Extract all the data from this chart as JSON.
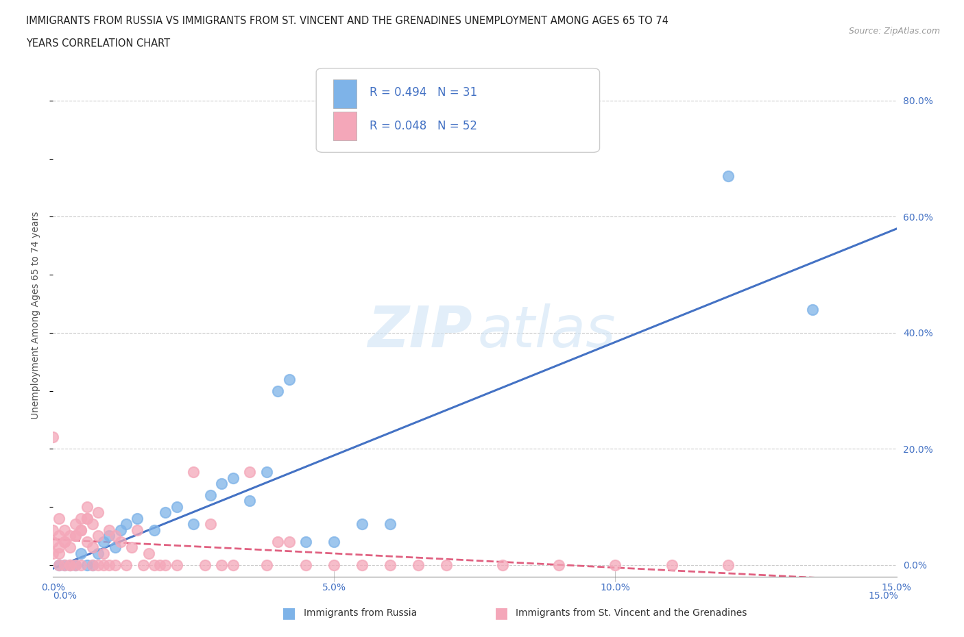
{
  "title_line1": "IMMIGRANTS FROM RUSSIA VS IMMIGRANTS FROM ST. VINCENT AND THE GRENADINES UNEMPLOYMENT AMONG AGES 65 TO 74",
  "title_line2": "YEARS CORRELATION CHART",
  "source_text": "Source: ZipAtlas.com",
  "ylabel": "Unemployment Among Ages 65 to 74 years",
  "xlim": [
    0.0,
    0.15
  ],
  "ylim": [
    -0.02,
    0.88
  ],
  "xticks": [
    0.0,
    0.05,
    0.1,
    0.15
  ],
  "xtick_labels": [
    "0.0%",
    "5.0%",
    "10.0%",
    "15.0%"
  ],
  "ytick_labels_right": [
    "0.0%",
    "20.0%",
    "40.0%",
    "60.0%",
    "80.0%"
  ],
  "ytick_values_right": [
    0.0,
    0.2,
    0.4,
    0.6,
    0.8
  ],
  "R_russia": 0.494,
  "N_russia": 31,
  "R_svg": 0.048,
  "N_svg": 52,
  "color_russia": "#7EB3E8",
  "color_svg": "#F4A7B9",
  "color_trendline_russia": "#4472C4",
  "color_trendline_svg": "#E06080",
  "russia_x": [
    0.001,
    0.002,
    0.003,
    0.004,
    0.005,
    0.006,
    0.007,
    0.008,
    0.009,
    0.01,
    0.011,
    0.012,
    0.013,
    0.015,
    0.018,
    0.02,
    0.022,
    0.025,
    0.028,
    0.03,
    0.032,
    0.035,
    0.038,
    0.04,
    0.042,
    0.045,
    0.05,
    0.055,
    0.06,
    0.12,
    0.135
  ],
  "russia_y": [
    0.0,
    0.0,
    0.0,
    0.0,
    0.02,
    0.0,
    0.0,
    0.02,
    0.04,
    0.05,
    0.03,
    0.06,
    0.07,
    0.08,
    0.06,
    0.09,
    0.1,
    0.07,
    0.12,
    0.14,
    0.15,
    0.11,
    0.16,
    0.3,
    0.32,
    0.04,
    0.04,
    0.07,
    0.07,
    0.67,
    0.44
  ],
  "svg_x": [
    0.001,
    0.001,
    0.002,
    0.002,
    0.003,
    0.003,
    0.004,
    0.004,
    0.005,
    0.005,
    0.006,
    0.006,
    0.007,
    0.007,
    0.008,
    0.008,
    0.009,
    0.009,
    0.01,
    0.01,
    0.011,
    0.011,
    0.012,
    0.013,
    0.014,
    0.015,
    0.016,
    0.017,
    0.018,
    0.019,
    0.02,
    0.022,
    0.025,
    0.027,
    0.028,
    0.03,
    0.032,
    0.035,
    0.038,
    0.04,
    0.042,
    0.045,
    0.05,
    0.055,
    0.06,
    0.065,
    0.07,
    0.08,
    0.09,
    0.1,
    0.11,
    0.12
  ],
  "svg_y": [
    0.0,
    0.02,
    0.0,
    0.04,
    0.0,
    0.0,
    0.05,
    0.0,
    0.06,
    0.0,
    0.08,
    0.04,
    0.03,
    0.0,
    0.0,
    0.05,
    0.0,
    0.02,
    0.0,
    0.06,
    0.0,
    0.05,
    0.04,
    0.0,
    0.03,
    0.06,
    0.0,
    0.02,
    0.0,
    0.0,
    0.0,
    0.0,
    0.16,
    0.0,
    0.07,
    0.0,
    0.0,
    0.16,
    0.0,
    0.04,
    0.04,
    0.0,
    0.0,
    0.0,
    0.0,
    0.0,
    0.0,
    0.0,
    0.0,
    0.0,
    0.0,
    0.0
  ],
  "svg_x_extra": [
    0.0,
    0.0,
    0.0,
    0.0,
    0.001,
    0.001,
    0.001,
    0.002,
    0.002,
    0.003,
    0.003,
    0.004,
    0.004,
    0.005,
    0.005,
    0.006,
    0.006,
    0.007,
    0.008
  ],
  "svg_y_extra": [
    0.22,
    0.06,
    0.04,
    0.02,
    0.08,
    0.05,
    0.03,
    0.06,
    0.04,
    0.05,
    0.03,
    0.07,
    0.05,
    0.08,
    0.06,
    0.1,
    0.08,
    0.07,
    0.09
  ]
}
